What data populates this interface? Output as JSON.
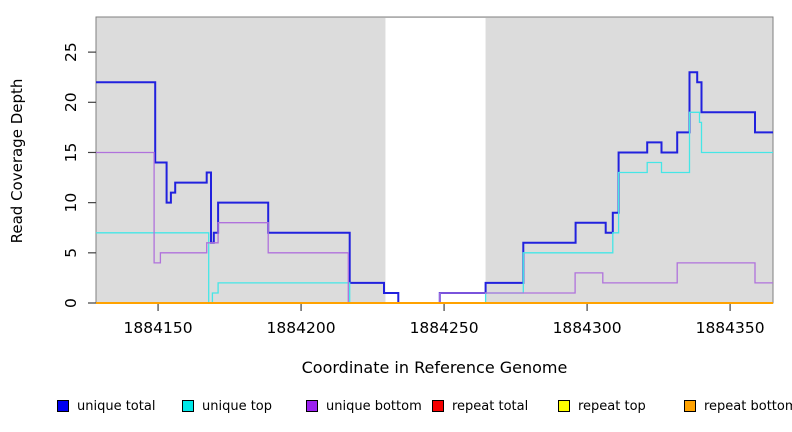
{
  "chart_data": {
    "type": "line",
    "subtype": "step",
    "title": "",
    "xlabel": "Coordinate in Reference Genome",
    "ylabel": "Read Coverage Depth",
    "xlim": [
      1884128.3,
      1884365
    ],
    "ylim": [
      0,
      28.5
    ],
    "xticks": [
      1884150,
      1884200,
      1884250,
      1884300,
      1884350
    ],
    "yticks": [
      0,
      5,
      10,
      15,
      20,
      25
    ],
    "grid": false,
    "legend_position": "bottom",
    "plot_bg_color": "#DCDCDC",
    "gap_region": {
      "x0": 1884229.5,
      "x1": 1884264.5,
      "color": "#FFFFFF"
    },
    "series": [
      {
        "name": "unique total",
        "color": "#2121DE",
        "width": 2,
        "points": [
          [
            1884128.3,
            22
          ],
          [
            1884149,
            14
          ],
          [
            1884153,
            10
          ],
          [
            1884154.5,
            11
          ],
          [
            1884156,
            12
          ],
          [
            1884167,
            13
          ],
          [
            1884168.5,
            6
          ],
          [
            1884169.5,
            7
          ],
          [
            1884171,
            10
          ],
          [
            1884188.5,
            7
          ],
          [
            1884217,
            2
          ],
          [
            1884229,
            1
          ],
          [
            1884234,
            0
          ],
          [
            1884248.5,
            1
          ],
          [
            1884264.5,
            2
          ],
          [
            1884277.7,
            6
          ],
          [
            1884296,
            8
          ],
          [
            1884306.5,
            7
          ],
          [
            1884309,
            9
          ],
          [
            1884311,
            15
          ],
          [
            1884321,
            16
          ],
          [
            1884326,
            15
          ],
          [
            1884331.5,
            17
          ],
          [
            1884335.8,
            23
          ],
          [
            1884338.5,
            22
          ],
          [
            1884340,
            19
          ],
          [
            1884358.7,
            17
          ]
        ]
      },
      {
        "name": "unique top",
        "color": "#45E6E6",
        "width": 1.3,
        "points": [
          [
            1884128.3,
            7
          ],
          [
            1884167.7,
            0
          ],
          [
            1884169,
            1
          ],
          [
            1884171,
            2
          ],
          [
            1884217,
            0
          ],
          [
            1884264.5,
            1
          ],
          [
            1884277.7,
            5
          ],
          [
            1884309,
            7
          ],
          [
            1884311,
            13
          ],
          [
            1884321,
            14
          ],
          [
            1884326,
            13
          ],
          [
            1884335.8,
            19
          ],
          [
            1884339.3,
            18
          ],
          [
            1884340,
            15
          ]
        ]
      },
      {
        "name": "unique bottom",
        "color": "#B072DC",
        "width": 1.3,
        "points": [
          [
            1884128.3,
            15
          ],
          [
            1884148.6,
            4
          ],
          [
            1884150.8,
            5
          ],
          [
            1884167,
            6
          ],
          [
            1884171,
            8
          ],
          [
            1884188.5,
            5
          ],
          [
            1884216.5,
            0
          ],
          [
            1884248.5,
            1
          ],
          [
            1884295.8,
            3
          ],
          [
            1884305.5,
            2
          ],
          [
            1884331.5,
            4
          ],
          [
            1884358.7,
            2
          ]
        ]
      },
      {
        "name": "repeat total",
        "color": "#EE0000",
        "width": 1.3,
        "points": [
          [
            1884128.3,
            0
          ]
        ]
      },
      {
        "name": "repeat top",
        "color": "#F5F500",
        "width": 1.3,
        "points": [
          [
            1884128.3,
            0
          ]
        ]
      },
      {
        "name": "repeat bottom",
        "color": "#FFA200",
        "width": 2,
        "points": [
          [
            1884128.3,
            0
          ]
        ]
      }
    ],
    "legend_swatch_colors": {
      "unique total": "#0000F0",
      "unique top": "#00E8E8",
      "unique bottom": "#9B20F0",
      "repeat total": "#F50000",
      "repeat top": "#FFFF00",
      "repeat bottom": "#FFA200"
    }
  }
}
